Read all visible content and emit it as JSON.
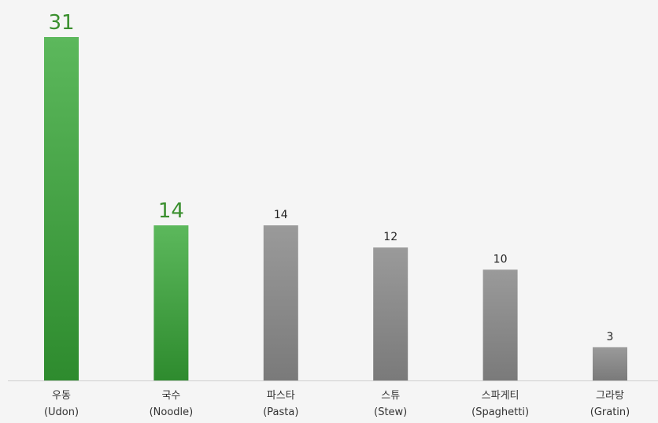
{
  "chart_data": {
    "type": "bar",
    "categories": [
      {
        "korean": "우동",
        "english": "(Udon)"
      },
      {
        "korean": "국수",
        "english": "(Noodle)"
      },
      {
        "korean": "파스타",
        "english": "(Pasta)"
      },
      {
        "korean": "스튜",
        "english": "(Stew)"
      },
      {
        "korean": "스파게티",
        "english": "(Spaghetti)"
      },
      {
        "korean": "그라탕",
        "english": "(Gratin)"
      }
    ],
    "values": [
      31,
      14,
      14,
      12,
      10,
      3
    ],
    "value_labels": [
      "31",
      "14",
      "14",
      "12",
      "10",
      "3"
    ],
    "highlighted": [
      true,
      true,
      false,
      false,
      false,
      false
    ],
    "ylim": [
      0,
      31
    ],
    "grid": false,
    "colors": {
      "highlight_top": "#5cb85c",
      "highlight_bottom": "#2e8b2e",
      "highlight_label": "#3a8f2e",
      "normal_top": "#9a9a9a",
      "normal_bottom": "#7a7a7a",
      "normal_label": "#222222",
      "baseline": "#cfcfcf",
      "category_text": "#333333",
      "background": "#f5f5f5"
    }
  }
}
